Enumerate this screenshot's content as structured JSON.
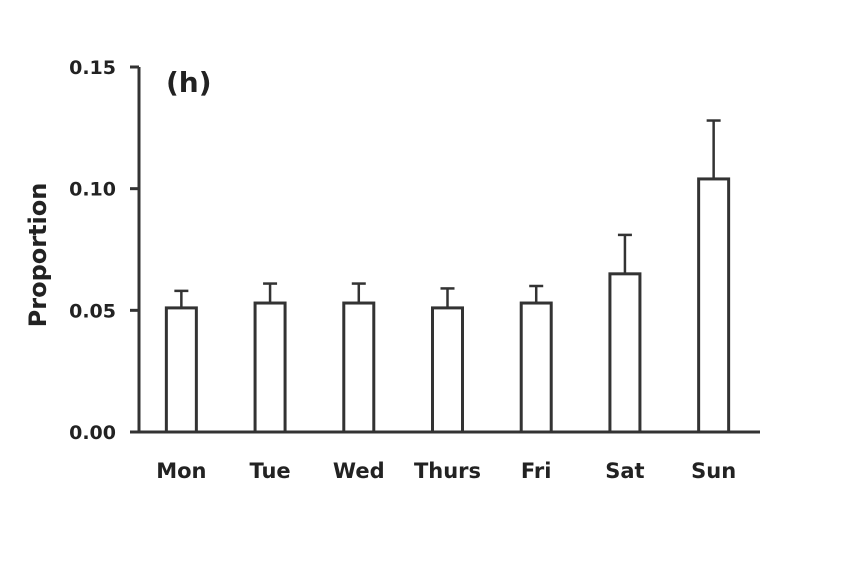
{
  "chart_data": {
    "type": "bar",
    "panel_label": "(h)",
    "ylabel": "Proportion",
    "xlabel": "",
    "ylim": [
      0,
      0.15
    ],
    "yticks": [
      0.0,
      0.05,
      0.1,
      0.15
    ],
    "ytick_labels": [
      "0.00",
      "0.05",
      "0.10",
      "0.15"
    ],
    "categories": [
      "Mon",
      "Tue",
      "Wed",
      "Thurs",
      "Fri",
      "Sat",
      "Sun"
    ],
    "values": [
      0.051,
      0.053,
      0.053,
      0.051,
      0.053,
      0.065,
      0.104
    ],
    "error_upper": [
      0.007,
      0.008,
      0.008,
      0.008,
      0.007,
      0.016,
      0.024
    ],
    "grid": false,
    "legend": false,
    "colors": {
      "bar_fill": "#ffffff",
      "bar_stroke": "#333333",
      "axis": "#333333"
    }
  }
}
